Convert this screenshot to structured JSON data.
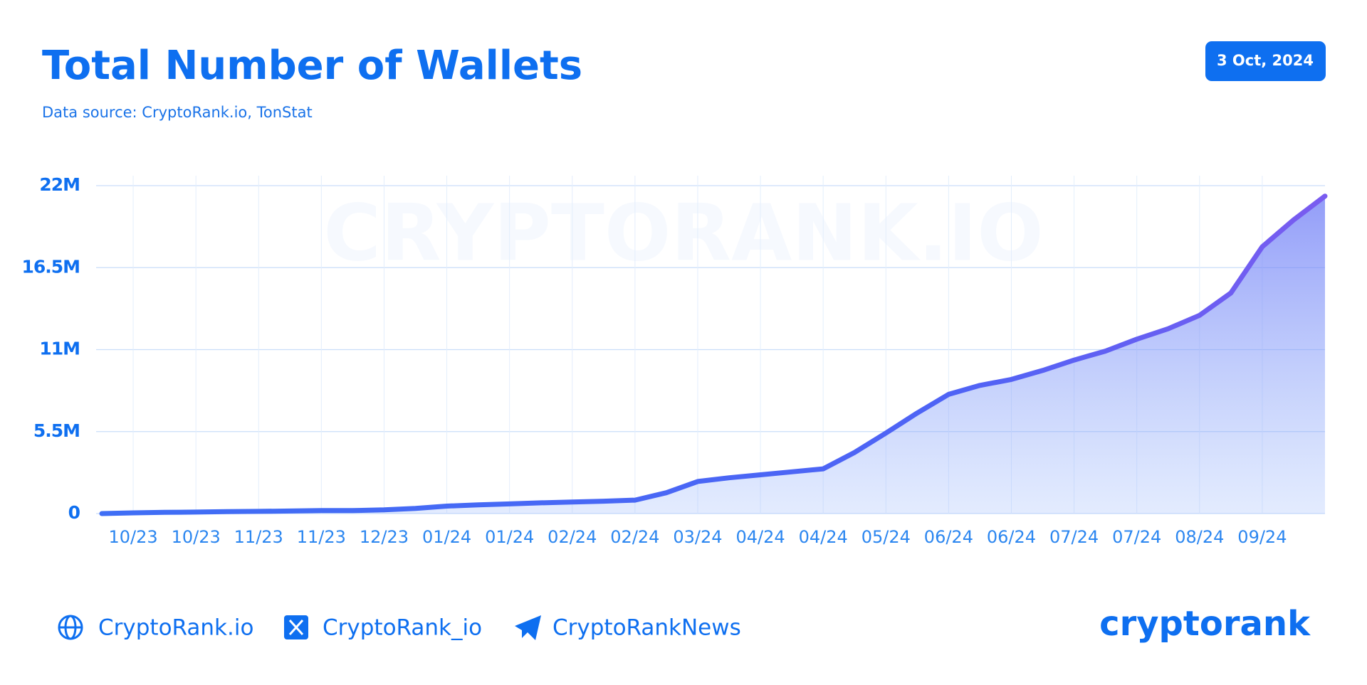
{
  "chart_data": {
    "type": "area",
    "title": "Total Number of Wallets",
    "subtitle": "Data source: CryptoRank.io, TonStat",
    "date": "3 Oct, 2024",
    "watermark": "CRYPTORANK.IO",
    "categories": [
      null,
      "10/23",
      null,
      "10/23",
      null,
      "11/23",
      null,
      "11/23",
      null,
      "12/23",
      null,
      "01/24",
      null,
      "01/24",
      null,
      "02/24",
      null,
      "02/24",
      null,
      "03/24",
      null,
      "04/24",
      null,
      "04/24",
      null,
      "05/24",
      null,
      "06/24",
      null,
      "06/24",
      null,
      "07/24",
      null,
      "07/24",
      null,
      "08/24",
      null,
      "09/24",
      null,
      null
    ],
    "series": [
      {
        "name": "Total Number of Wallets",
        "color": "#4f63f5",
        "values": [
          0.0,
          0.05,
          0.08,
          0.1,
          0.13,
          0.15,
          0.17,
          0.2,
          0.2,
          0.25,
          0.35,
          0.5,
          0.58,
          0.65,
          0.72,
          0.78,
          0.83,
          0.9,
          1.4,
          2.15,
          2.4,
          2.6,
          2.8,
          3.0,
          4.1,
          5.4,
          6.75,
          8.0,
          8.6,
          9.0,
          9.6,
          10.3,
          10.9,
          11.7,
          12.4,
          13.3,
          14.8,
          17.9,
          19.7,
          21.3
        ]
      }
    ],
    "ylim": [
      0,
      22
    ],
    "yticks": [
      0,
      {
        "value": 5.5,
        "label": "5.5M"
      },
      {
        "value": 11,
        "label": "11M"
      },
      {
        "value": 16.5,
        "label": "16.5M"
      },
      {
        "value": 22,
        "label": "22M"
      }
    ],
    "grid": true
  },
  "footer": {
    "links": [
      "CryptoRank.io",
      "CryptoRank_io",
      "CryptoRankNews"
    ],
    "logo": "cryptorank"
  }
}
